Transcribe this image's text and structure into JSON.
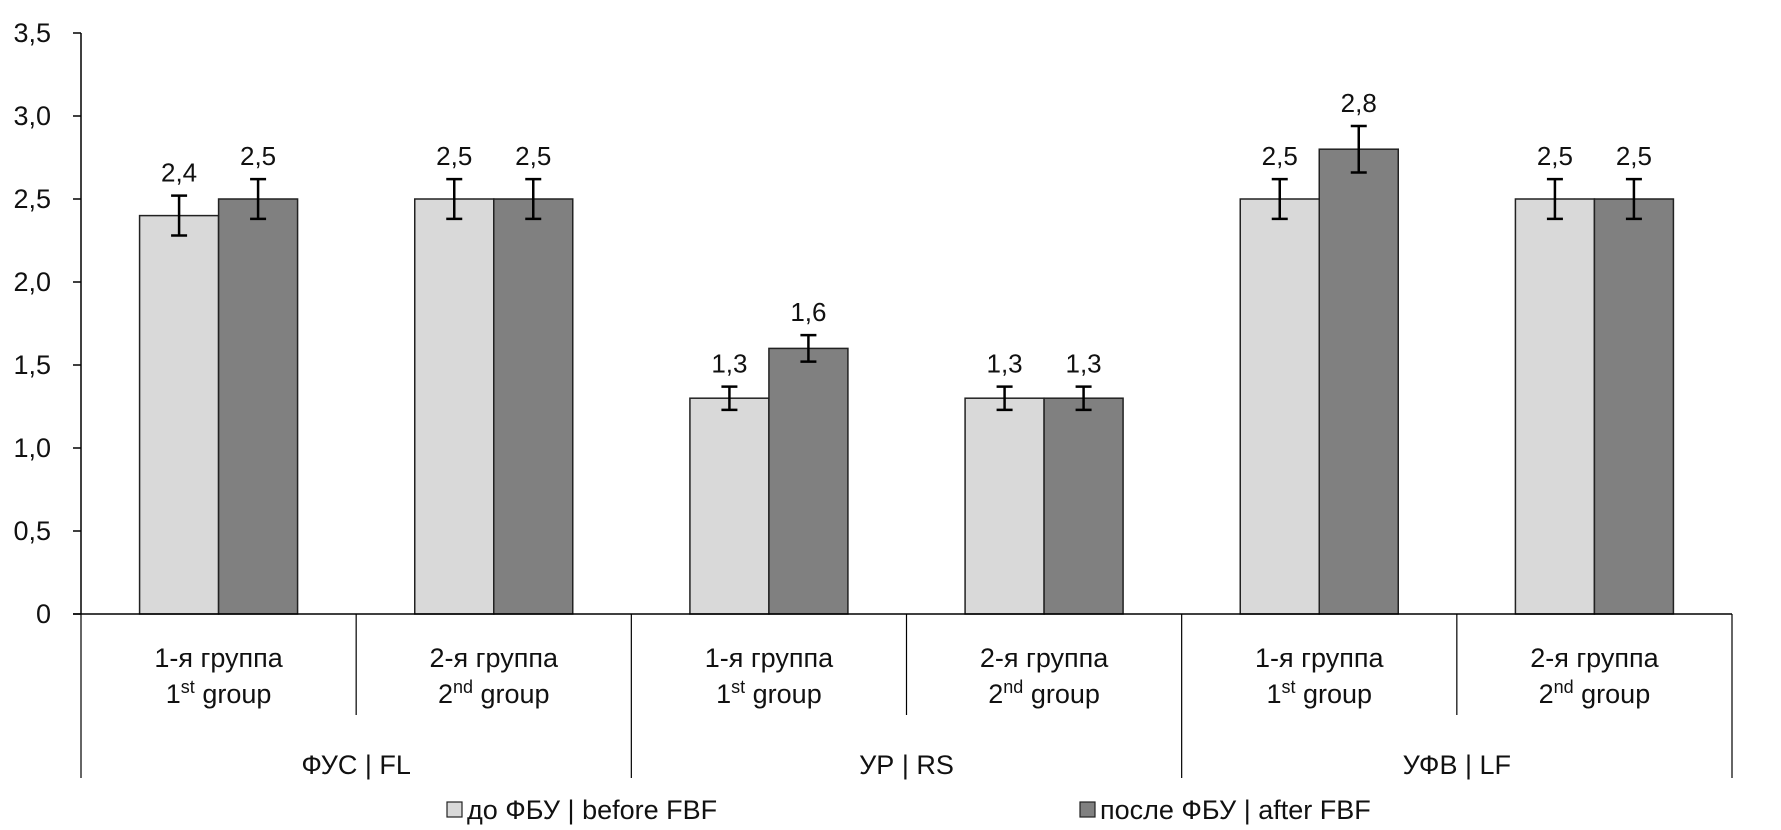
{
  "chart_data": {
    "type": "bar",
    "title": "",
    "xlabel": "",
    "ylabel": "",
    "ylim": [
      0,
      3.5
    ],
    "yticks": [
      0,
      0.5,
      1.0,
      1.5,
      2.0,
      2.5,
      3.0,
      3.5
    ],
    "ytick_labels": [
      "0",
      "0,5",
      "1,0",
      "1,5",
      "2,0",
      "2,5",
      "3,0",
      "3,5"
    ],
    "grid": false,
    "legend_position": "bottom",
    "category_groups": [
      {
        "label": "ФУС | FL",
        "categories": [
          0,
          1
        ]
      },
      {
        "label": "УР | RS",
        "categories": [
          2,
          3
        ]
      },
      {
        "label": "УФВ | LF",
        "categories": [
          4,
          5
        ]
      }
    ],
    "categories": [
      {
        "line1": "1-я группа",
        "num": "1",
        "sup": "st",
        "rest": " group"
      },
      {
        "line1": "2-я группа",
        "num": "2",
        "sup": "nd",
        "rest": " group"
      },
      {
        "line1": "1-я группа",
        "num": "1",
        "sup": "st",
        "rest": " group"
      },
      {
        "line1": "2-я группа",
        "num": "2",
        "sup": "nd",
        "rest": " group"
      },
      {
        "line1": "1-я группа",
        "num": "1",
        "sup": "st",
        "rest": " group"
      },
      {
        "line1": "2-я группа",
        "num": "2",
        "sup": "nd",
        "rest": " group"
      }
    ],
    "series": [
      {
        "name": "до ФБУ | before FBF",
        "color": "#d9d9d9",
        "values": [
          2.4,
          2.5,
          1.3,
          1.3,
          2.5,
          2.5
        ],
        "labels": [
          "2,4",
          "2,5",
          "1,3",
          "1,3",
          "2,5",
          "2,5"
        ],
        "errors": [
          0.12,
          0.12,
          0.07,
          0.07,
          0.12,
          0.12
        ]
      },
      {
        "name": "после ФБУ | after FBF",
        "color": "#808080",
        "values": [
          2.5,
          2.5,
          1.6,
          1.3,
          2.8,
          2.5
        ],
        "labels": [
          "2,5",
          "2,5",
          "1,6",
          "1,3",
          "2,8",
          "2,5"
        ],
        "errors": [
          0.12,
          0.12,
          0.08,
          0.07,
          0.14,
          0.12
        ]
      }
    ]
  }
}
